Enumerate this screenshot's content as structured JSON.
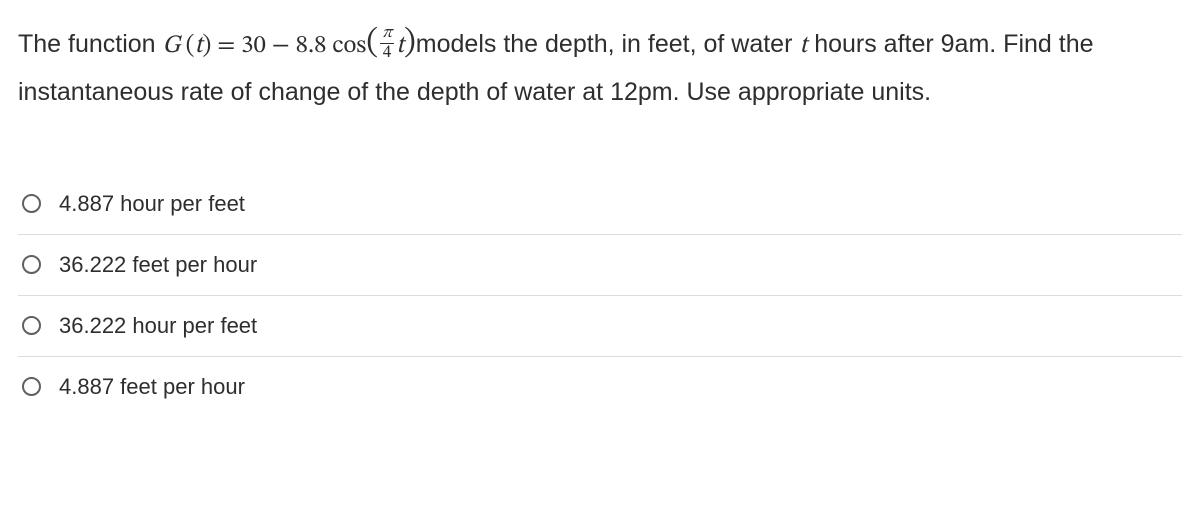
{
  "question": {
    "pre": "The function ",
    "func_name": "G",
    "open_paren1": "(",
    "var1": "t",
    "close_paren1": ")",
    "equals": " = ",
    "const": "30",
    "minus": " − ",
    "coef": "8.8",
    "cos": " cos",
    "frac_num": "π",
    "frac_den": "4",
    "var2": "t",
    "post1": "models the depth, in feet, of water ",
    "var3": "t",
    "post2": " hours after 9am. Find the instantaneous rate of change of the depth of water at 12pm. Use appropriate units."
  },
  "options": [
    {
      "label": "4.887 hour per feet"
    },
    {
      "label": "36.222 feet per hour"
    },
    {
      "label": "36.222 hour per feet"
    },
    {
      "label": "4.887 feet per hour"
    }
  ],
  "colors": {
    "text": "#2e2e2e",
    "divider": "#dcdcdc",
    "radio_border": "#606060",
    "background": "#ffffff"
  }
}
